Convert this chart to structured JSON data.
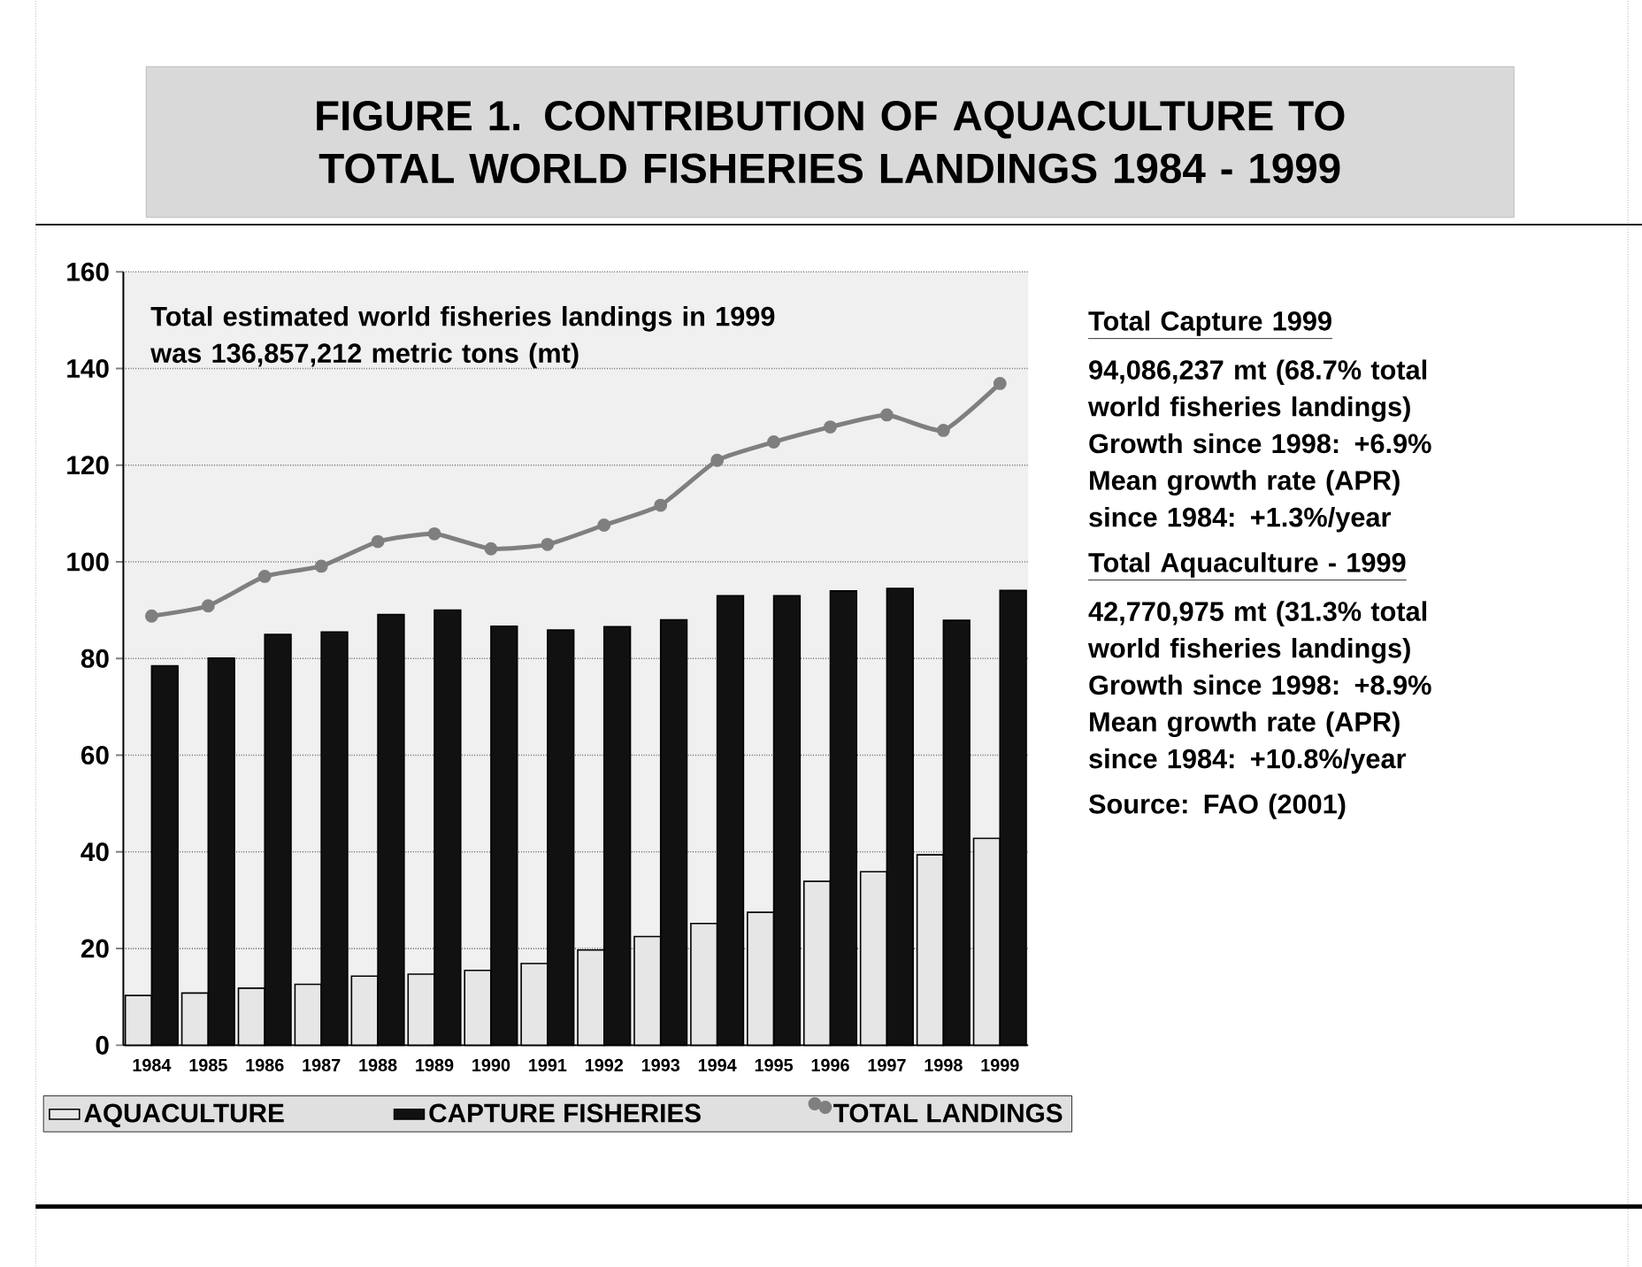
{
  "chart_data": {
    "type": "bar",
    "title": "FIGURE 1. CONTRIBUTION OF AQUACULTURE TO TOTAL WORLD FISHERIES LANDINGS 1984 - 1999",
    "categories": [
      "1984",
      "1985",
      "1986",
      "1987",
      "1988",
      "1989",
      "1990",
      "1991",
      "1992",
      "1993",
      "1994",
      "1995",
      "1996",
      "1997",
      "1998",
      "1999"
    ],
    "series": [
      {
        "name": "AQUACULTURE",
        "color": "#e6e6e6",
        "values": [
          10.3,
          10.8,
          11.8,
          12.6,
          14.3,
          14.7,
          15.5,
          16.9,
          19.7,
          22.5,
          25.2,
          27.5,
          33.9,
          35.9,
          39.4,
          42.8
        ]
      },
      {
        "name": "CAPTURE FISHERIES",
        "color": "#111111",
        "values": [
          78.5,
          80.1,
          85.0,
          85.5,
          89.1,
          90.0,
          86.7,
          85.9,
          86.6,
          88.0,
          93.0,
          93.0,
          94.0,
          94.5,
          87.9,
          94.1
        ]
      },
      {
        "name": "TOTAL LANDINGS",
        "type": "line",
        "color": "#7f7f7f",
        "values": [
          88.8,
          90.9,
          97.0,
          99.1,
          104.2,
          105.8,
          102.7,
          103.6,
          107.6,
          111.7,
          121.0,
          124.8,
          127.9,
          130.4,
          127.2,
          136.9
        ]
      }
    ],
    "annotations": [
      "Total estimated world fisheries landings in 1999 was 136,857,212 metric tons (mt)",
      "Total Capture 1999",
      "94,086,237 mt (68.7% total world fisheries landings) Growth since 1998: +6.9% Mean growth rate (APR) since 1984: +1.3%/year",
      "Total Aquaculture - 1999",
      "42,770,975 mt (31.3% total world fisheries landings) Growth since 1998: +8.9% Mean growth rate (APR) since 1984: +10.8%/year",
      "Source: FAO (2001)"
    ],
    "ylim": [
      0,
      160
    ],
    "yticks": [
      0,
      20,
      40,
      60,
      80,
      100,
      120,
      140,
      160
    ],
    "grid": "y",
    "legend": "bottom",
    "marker": "circle"
  }
}
